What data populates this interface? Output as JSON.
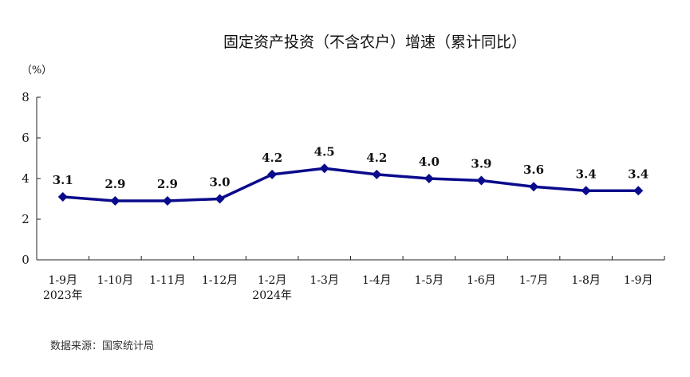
{
  "chart_data": {
    "type": "line",
    "title": "固定资产投资（不含农户）增速（累计同比）",
    "unit_label": "（%）",
    "categories": [
      "1-9月",
      "1-10月",
      "1-11月",
      "1-12月",
      "1-2月",
      "1-3月",
      "1-4月",
      "1-5月",
      "1-6月",
      "1-7月",
      "1-8月",
      "1-9月"
    ],
    "year_labels": [
      "2023年",
      "",
      "",
      "",
      "2024年",
      "",
      "",
      "",
      "",
      "",
      "",
      ""
    ],
    "values": [
      3.1,
      2.9,
      2.9,
      3.0,
      4.2,
      4.5,
      4.2,
      4.0,
      3.9,
      3.6,
      3.4,
      3.4
    ],
    "data_labels": [
      "3.1",
      "2.9",
      "2.9",
      "3.0",
      "4.2",
      "4.5",
      "4.2",
      "4.0",
      "3.9",
      "3.6",
      "3.4",
      "3.4"
    ],
    "ylim": [
      0,
      8
    ],
    "yticks": [
      0,
      2,
      4,
      6,
      8
    ],
    "ytick_labels": [
      "0",
      "2",
      "4",
      "6",
      "8"
    ],
    "grid": false,
    "line_color": "#0a0a8c",
    "marker": "diamond"
  },
  "source": "数据来源：国家统计局"
}
